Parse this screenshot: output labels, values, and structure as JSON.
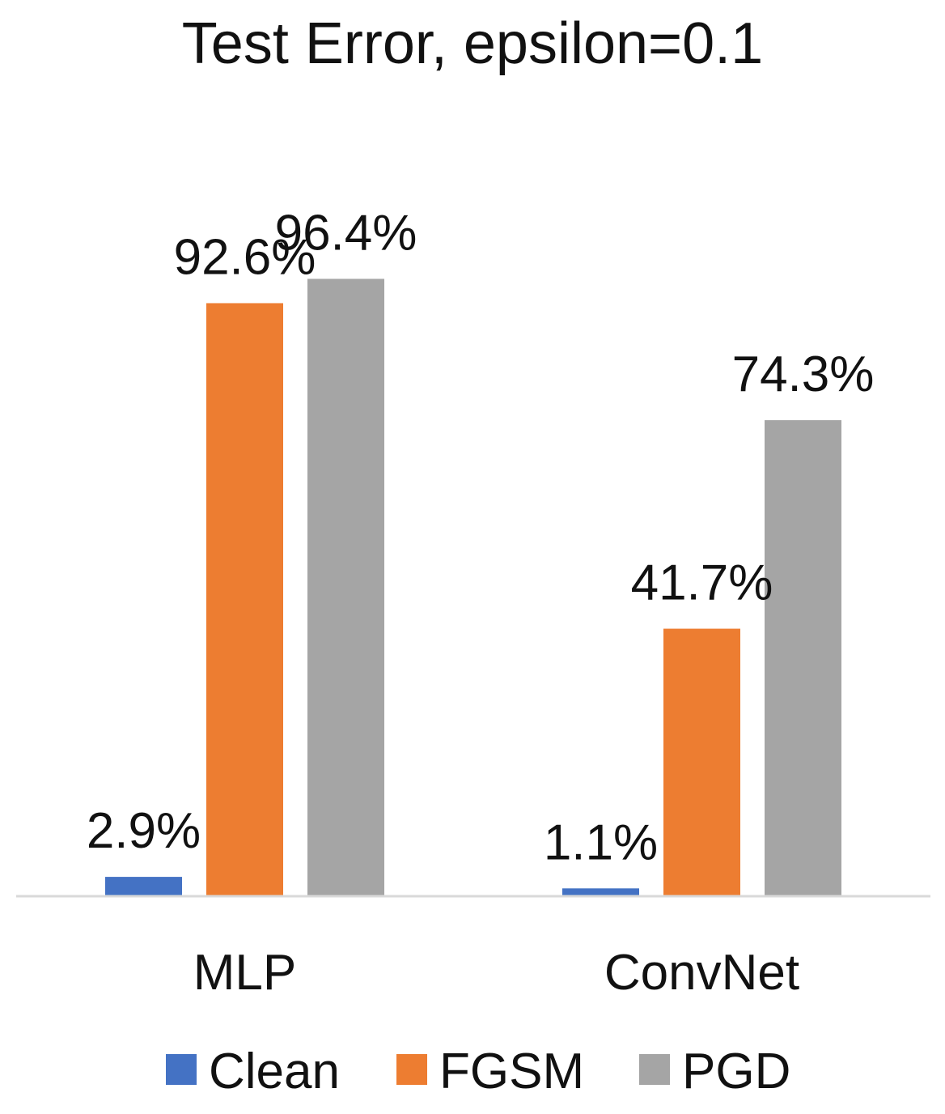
{
  "chart_data": {
    "type": "bar",
    "title": "Test Error, epsilon=0.1",
    "xlabel": "",
    "ylabel": "",
    "categories": [
      "MLP",
      "ConvNet"
    ],
    "series": [
      {
        "name": "Clean",
        "values": [
          2.9,
          1.1
        ],
        "labels": [
          "2.9%",
          "1.1%"
        ],
        "color": "#4472C4"
      },
      {
        "name": "FGSM",
        "values": [
          92.6,
          41.7
        ],
        "labels": [
          "92.6%",
          "41.7%"
        ],
        "color": "#ED7D31"
      },
      {
        "name": "PGD",
        "values": [
          96.4,
          74.3
        ],
        "labels": [
          "96.4%",
          "74.3%"
        ],
        "color": "#A5A5A5"
      }
    ],
    "ylim": [
      0,
      100
    ],
    "grid": false,
    "legend_position": "bottom",
    "axis_line_color": "#D9D9D9"
  }
}
